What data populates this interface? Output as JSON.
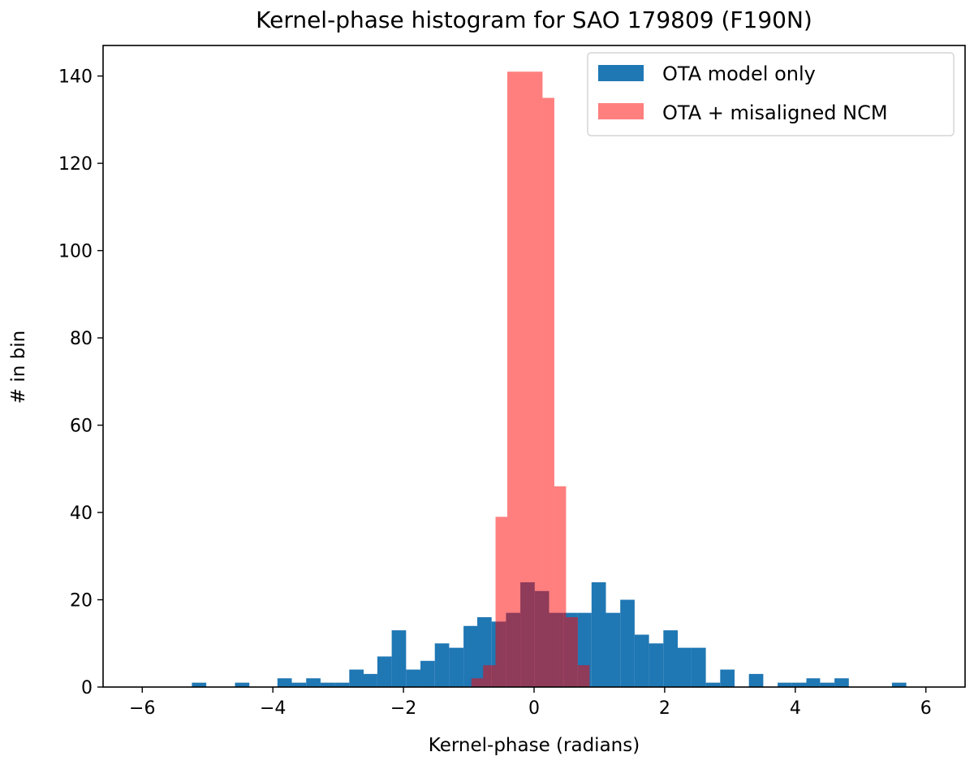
{
  "chart_data": {
    "type": "histogram",
    "title": "Kernel-phase histogram for SAO 179809 (F190N)",
    "xlabel": "Kernel-phase (radians)",
    "ylabel": "# in bin",
    "xlim": [
      -6.6,
      6.6
    ],
    "ylim": [
      0,
      147
    ],
    "xticks": [
      -6,
      -4,
      -2,
      0,
      2,
      4,
      6
    ],
    "xtick_labels": [
      "−6",
      "−4",
      "−2",
      "0",
      "2",
      "4",
      "6"
    ],
    "yticks": [
      0,
      20,
      40,
      60,
      80,
      100,
      120,
      140
    ],
    "ytick_labels": [
      "0",
      "20",
      "40",
      "60",
      "80",
      "100",
      "120",
      "140"
    ],
    "legend_position": "top-right",
    "series": [
      {
        "name": "OTA model only",
        "color": "#1f77b4",
        "bins": [
          {
            "x0": -5.24,
            "x1": -5.02,
            "count": 1
          },
          {
            "x0": -4.58,
            "x1": -4.36,
            "count": 1
          },
          {
            "x0": -3.93,
            "x1": -3.71,
            "count": 2
          },
          {
            "x0": -3.71,
            "x1": -3.49,
            "count": 1
          },
          {
            "x0": -3.49,
            "x1": -3.27,
            "count": 2
          },
          {
            "x0": -3.27,
            "x1": -3.05,
            "count": 1
          },
          {
            "x0": -3.05,
            "x1": -2.83,
            "count": 1
          },
          {
            "x0": -2.83,
            "x1": -2.61,
            "count": 4
          },
          {
            "x0": -2.61,
            "x1": -2.4,
            "count": 3
          },
          {
            "x0": -2.4,
            "x1": -2.18,
            "count": 7
          },
          {
            "x0": -2.18,
            "x1": -1.96,
            "count": 13
          },
          {
            "x0": -1.96,
            "x1": -1.74,
            "count": 4
          },
          {
            "x0": -1.74,
            "x1": -1.52,
            "count": 6
          },
          {
            "x0": -1.52,
            "x1": -1.3,
            "count": 10
          },
          {
            "x0": -1.3,
            "x1": -1.08,
            "count": 9
          },
          {
            "x0": -1.08,
            "x1": -0.87,
            "count": 14
          },
          {
            "x0": -0.87,
            "x1": -0.65,
            "count": 16
          },
          {
            "x0": -0.65,
            "x1": -0.43,
            "count": 15
          },
          {
            "x0": -0.43,
            "x1": -0.21,
            "count": 17
          },
          {
            "x0": -0.21,
            "x1": 0.01,
            "count": 24
          },
          {
            "x0": 0.01,
            "x1": 0.23,
            "count": 22
          },
          {
            "x0": 0.23,
            "x1": 0.45,
            "count": 17
          },
          {
            "x0": 0.45,
            "x1": 0.67,
            "count": 17
          },
          {
            "x0": 0.67,
            "x1": 0.88,
            "count": 17
          },
          {
            "x0": 0.88,
            "x1": 1.1,
            "count": 24
          },
          {
            "x0": 1.1,
            "x1": 1.32,
            "count": 17
          },
          {
            "x0": 1.32,
            "x1": 1.54,
            "count": 20
          },
          {
            "x0": 1.54,
            "x1": 1.76,
            "count": 12
          },
          {
            "x0": 1.76,
            "x1": 1.98,
            "count": 10
          },
          {
            "x0": 1.98,
            "x1": 2.2,
            "count": 13
          },
          {
            "x0": 2.2,
            "x1": 2.41,
            "count": 9
          },
          {
            "x0": 2.41,
            "x1": 2.63,
            "count": 9
          },
          {
            "x0": 2.63,
            "x1": 2.85,
            "count": 1
          },
          {
            "x0": 2.85,
            "x1": 3.07,
            "count": 4
          },
          {
            "x0": 3.29,
            "x1": 3.51,
            "count": 3
          },
          {
            "x0": 3.73,
            "x1": 3.95,
            "count": 1
          },
          {
            "x0": 3.95,
            "x1": 4.17,
            "count": 1
          },
          {
            "x0": 4.17,
            "x1": 4.38,
            "count": 2
          },
          {
            "x0": 4.38,
            "x1": 4.6,
            "count": 1
          },
          {
            "x0": 4.6,
            "x1": 4.82,
            "count": 2
          },
          {
            "x0": 5.48,
            "x1": 5.7,
            "count": 1
          }
        ]
      },
      {
        "name": "OTA + misaligned NCM",
        "color": "#ff0000",
        "opacity": 0.5,
        "bins": [
          {
            "x0": -0.96,
            "x1": -0.78,
            "count": 2
          },
          {
            "x0": -0.78,
            "x1": -0.59,
            "count": 5
          },
          {
            "x0": -0.59,
            "x1": -0.41,
            "count": 39
          },
          {
            "x0": -0.41,
            "x1": -0.23,
            "count": 141
          },
          {
            "x0": -0.23,
            "x1": -0.05,
            "count": 141
          },
          {
            "x0": -0.05,
            "x1": 0.13,
            "count": 141
          },
          {
            "x0": 0.13,
            "x1": 0.31,
            "count": 135
          },
          {
            "x0": 0.31,
            "x1": 0.49,
            "count": 46
          },
          {
            "x0": 0.49,
            "x1": 0.67,
            "count": 16
          },
          {
            "x0": 0.67,
            "x1": 0.85,
            "count": 5
          }
        ]
      }
    ]
  }
}
